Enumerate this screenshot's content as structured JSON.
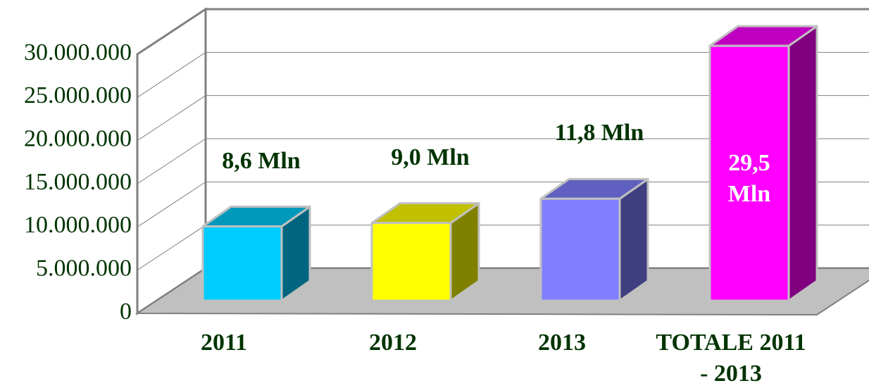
{
  "chart_data": {
    "type": "bar3d",
    "categories": [
      "2011",
      "2012",
      "2013",
      "TOTALE 2011 - 2013"
    ],
    "values": [
      8600000,
      9000000,
      11800000,
      29500000
    ],
    "value_labels": [
      "8,6 Mln",
      "9,0 Mln",
      "11,8 Mln",
      "29,5 Mln"
    ],
    "colors": [
      "#00ccff",
      "#ffff00",
      "#8080ff",
      "#ff00ff"
    ],
    "side_colors": [
      "#006680",
      "#808000",
      "#404080",
      "#800080"
    ],
    "top_colors": [
      "#0099bb",
      "#c0c000",
      "#6060c0",
      "#c000c0"
    ],
    "ylim": [
      0,
      30000000
    ],
    "yticks": [
      0,
      {
        "value": 5000000,
        "label": "5.000.000"
      },
      {
        "value": 10000000,
        "label": "10.000.000"
      },
      {
        "value": 15000000,
        "label": "15.000.000"
      },
      {
        "value": 20000000,
        "label": "20.000.000"
      },
      {
        "value": 25000000,
        "label": "25.000.000"
      },
      {
        "value": 30000000,
        "label": "30.000.000"
      }
    ],
    "grid": true
  }
}
